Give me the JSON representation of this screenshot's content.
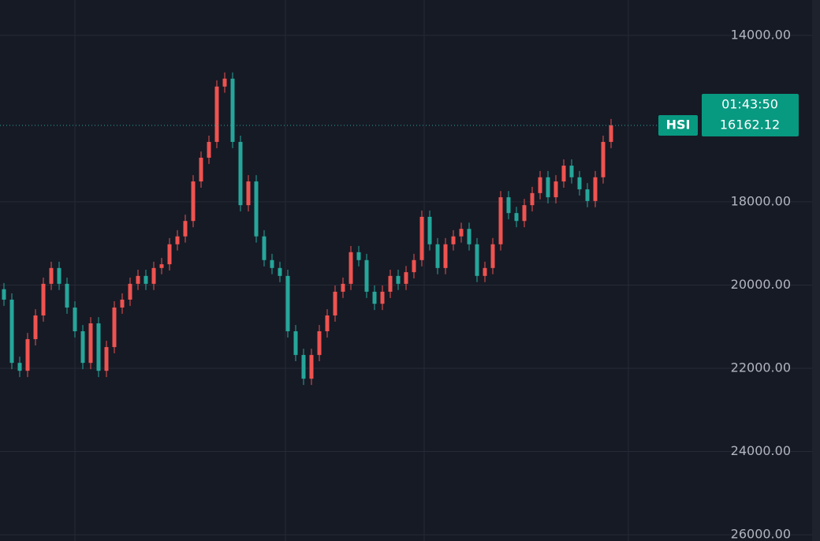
{
  "chart_data": {
    "type": "candlestick",
    "symbol": "HSI",
    "time_label": "01:43:50",
    "last_price": 16162.12,
    "up_color": "#26a69a",
    "down_color": "#ef5350",
    "y_inverted": true,
    "grid": true,
    "ylim": [
      13150,
      26150
    ],
    "yticks": [
      {
        "value": 14000,
        "label": "14000.00"
      },
      {
        "value": 18000,
        "label": "18000.00"
      },
      {
        "value": 20000,
        "label": "20000.00"
      },
      {
        "value": 22000,
        "label": "22000.00"
      },
      {
        "value": 24000,
        "label": "24000.00"
      },
      {
        "value": 26000,
        "label": "26000.00"
      }
    ],
    "open": [
      20100,
      20350,
      21870,
      22060,
      21300,
      20730,
      19970,
      19590,
      19970,
      20540,
      21110,
      21870,
      20920,
      22060,
      21490,
      20540,
      20350,
      19970,
      19780,
      19970,
      19590,
      19500,
      19020,
      18830,
      18460,
      17510,
      16940,
      16560,
      15230,
      15040,
      16560,
      18080,
      17510,
      18830,
      19400,
      19590,
      19780,
      21110,
      21680,
      22250,
      21680,
      21110,
      20730,
      20160,
      19970,
      19210,
      19400,
      20160,
      20450,
      20160,
      19780,
      19970,
      19690,
      19400,
      18360,
      19020,
      19590,
      19020,
      18830,
      18650,
      19020,
      19780,
      19590,
      19020,
      17890,
      18270,
      18460,
      18080,
      17790,
      17410,
      17890,
      17510,
      17130,
      17410,
      17700,
      17980,
      17410,
      16560
    ],
    "high": [
      20500,
      22020,
      22210,
      22210,
      21450,
      20880,
      20120,
      20120,
      20690,
      21260,
      22020,
      22020,
      22210,
      22210,
      21640,
      20690,
      20500,
      20120,
      20120,
      20120,
      19740,
      19650,
      19170,
      18980,
      18610,
      17660,
      17090,
      16710,
      15380,
      16710,
      18230,
      18230,
      18980,
      19550,
      19740,
      19930,
      21260,
      21830,
      22400,
      22400,
      21830,
      21260,
      20880,
      20310,
      20120,
      19550,
      20310,
      20600,
      20600,
      20310,
      20120,
      20120,
      19840,
      19550,
      19170,
      19740,
      19740,
      19170,
      18980,
      19170,
      19930,
      19930,
      19740,
      19170,
      18420,
      18610,
      18610,
      18230,
      17940,
      18040,
      18040,
      17660,
      17560,
      17850,
      18130,
      18130,
      17560,
      16710
    ],
    "low": [
      19950,
      20200,
      21720,
      21150,
      20580,
      19820,
      19440,
      19440,
      19820,
      20390,
      20960,
      20770,
      20770,
      21340,
      20390,
      20200,
      19820,
      19630,
      19630,
      19440,
      19350,
      18870,
      18680,
      18310,
      17360,
      16790,
      16410,
      15080,
      14890,
      14890,
      16410,
      17360,
      17360,
      18680,
      19250,
      19440,
      19630,
      20960,
      21530,
      21530,
      20960,
      20580,
      20010,
      19820,
      19060,
      19060,
      19250,
      20010,
      20010,
      19630,
      19630,
      19540,
      19250,
      18210,
      18210,
      18870,
      18870,
      18680,
      18500,
      18500,
      18870,
      19440,
      18870,
      17740,
      17740,
      18120,
      17930,
      17640,
      17260,
      17260,
      17360,
      16980,
      16980,
      17260,
      17550,
      17260,
      16410,
      16010
    ],
    "close": [
      20350,
      21870,
      22060,
      21300,
      20730,
      19970,
      19590,
      19970,
      20540,
      21110,
      21870,
      20920,
      22060,
      21490,
      20540,
      20350,
      19970,
      19780,
      19970,
      19590,
      19500,
      19020,
      18830,
      18460,
      17510,
      16940,
      16560,
      15230,
      15040,
      16560,
      18080,
      17510,
      18830,
      19400,
      19590,
      19780,
      21110,
      21680,
      22250,
      21680,
      21110,
      20730,
      20160,
      19970,
      19210,
      19400,
      20160,
      20450,
      20160,
      19780,
      19970,
      19690,
      19400,
      18360,
      19020,
      19590,
      19020,
      18830,
      18650,
      19020,
      19780,
      19590,
      19020,
      17890,
      18270,
      18460,
      18080,
      17790,
      17410,
      17890,
      17510,
      17130,
      17410,
      17700,
      17980,
      17410,
      16560,
      16162.12
    ]
  }
}
